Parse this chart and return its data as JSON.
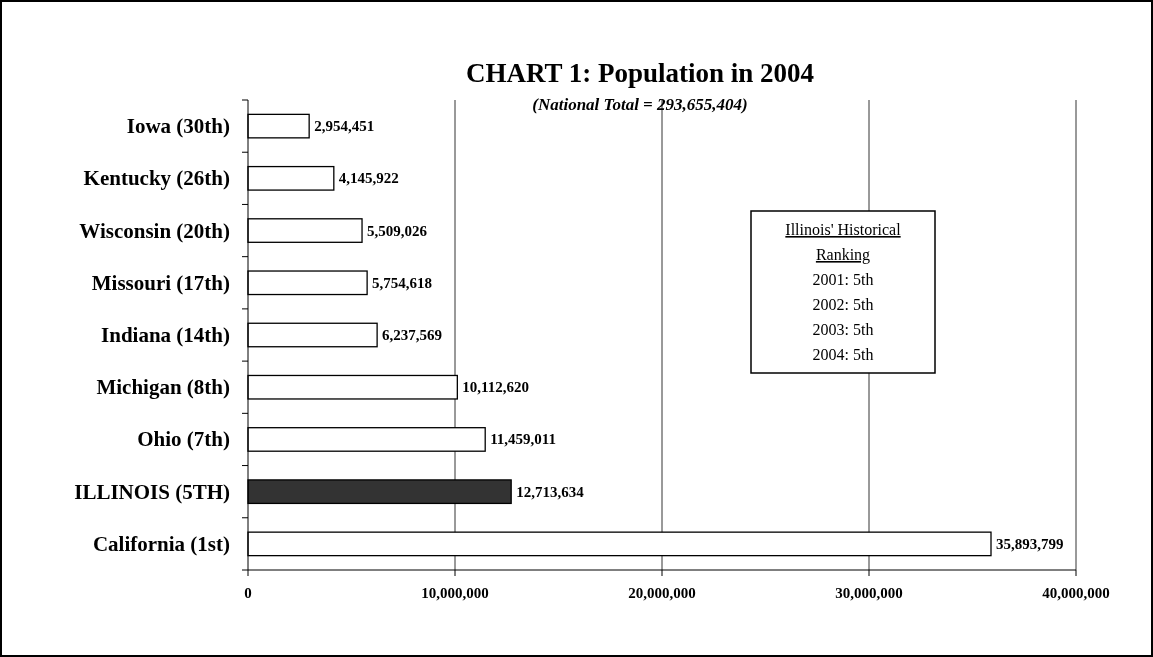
{
  "chart_data": {
    "type": "bar",
    "orientation": "horizontal",
    "title": "CHART 1:  Population in 2004",
    "subtitle": "(National Total = 293,655,404)",
    "categories": [
      "Iowa (30th)",
      "Kentucky (26th)",
      "Wisconsin (20th)",
      "Missouri (17th)",
      "Indiana (14th)",
      "Michigan (8th)",
      "Ohio (7th)",
      "ILLINOIS (5TH)",
      "California (1st)"
    ],
    "values": [
      2954451,
      4145922,
      5509026,
      5754618,
      6237569,
      10112620,
      11459011,
      12713634,
      35893799
    ],
    "colors": [
      "#ffffff",
      "#ffffff",
      "#ffffff",
      "#ffffff",
      "#ffffff",
      "#ffffff",
      "#ffffff",
      "#333333",
      "#ffffff"
    ],
    "xlim": [
      0,
      40000000
    ],
    "xticks": [
      {
        "value": 0,
        "label": "0"
      },
      {
        "value": 10000000,
        "label": "10,000,000"
      },
      {
        "value": 20000000,
        "label": "20,000,000"
      },
      {
        "value": 30000000,
        "label": "30,000,000"
      },
      {
        "value": 40000000,
        "label": "40,000,000"
      }
    ],
    "value_labels": [
      "2,954,451",
      "4,145,922",
      "5,509,026",
      "5,754,618",
      "6,237,569",
      "10,112,620",
      "11,459,011",
      "12,713,634",
      "35,893,799"
    ],
    "grid": "x",
    "annotations": [
      "Illinois' Historical Ranking",
      "2001:  5th",
      "2002:  5th",
      "2003:  5th",
      "2004:  5th"
    ]
  }
}
